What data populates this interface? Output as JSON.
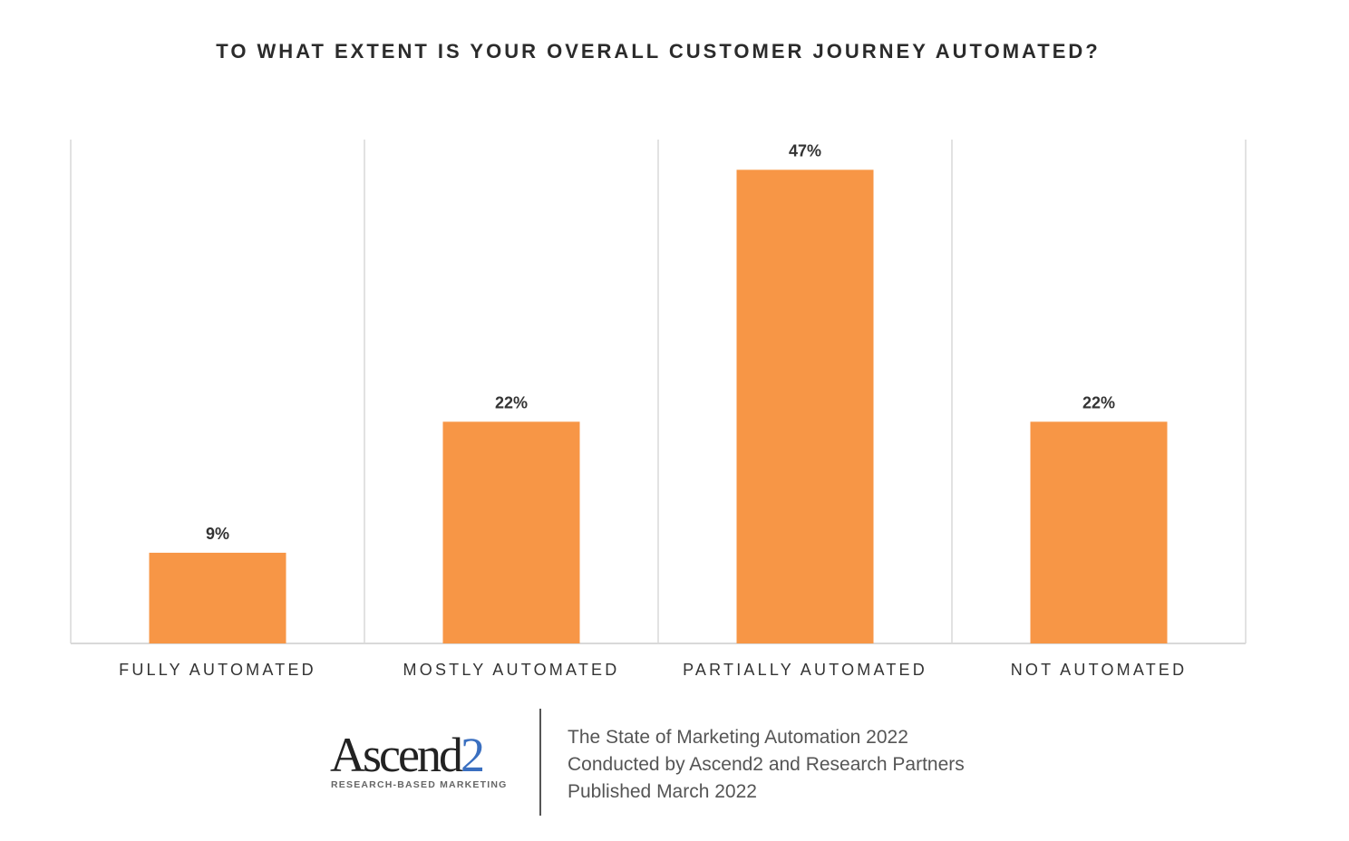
{
  "chart_data": {
    "type": "bar",
    "title": "TO WHAT EXTENT IS YOUR OVERALL CUSTOMER JOURNEY AUTOMATED?",
    "categories": [
      "FULLY AUTOMATED",
      "MOSTLY AUTOMATED",
      "PARTIALLY AUTOMATED",
      "NOT AUTOMATED"
    ],
    "values": [
      9,
      22,
      47,
      22
    ],
    "data_labels": [
      "9%",
      "22%",
      "47%",
      "22%"
    ],
    "xlabel": "",
    "ylabel": "",
    "ylim": [
      0,
      50
    ],
    "grid": "vertical category separators",
    "legend": "none",
    "bar_color": "#f79646",
    "grid_color": "#d9d9d9"
  },
  "footer": {
    "logo_text": "Ascend2",
    "logo_tagline": "RESEARCH-BASED MARKETING",
    "lines": [
      "The State of Marketing Automation 2022",
      "Conducted by Ascend2 and Research Partners",
      "Published March 2022"
    ]
  }
}
